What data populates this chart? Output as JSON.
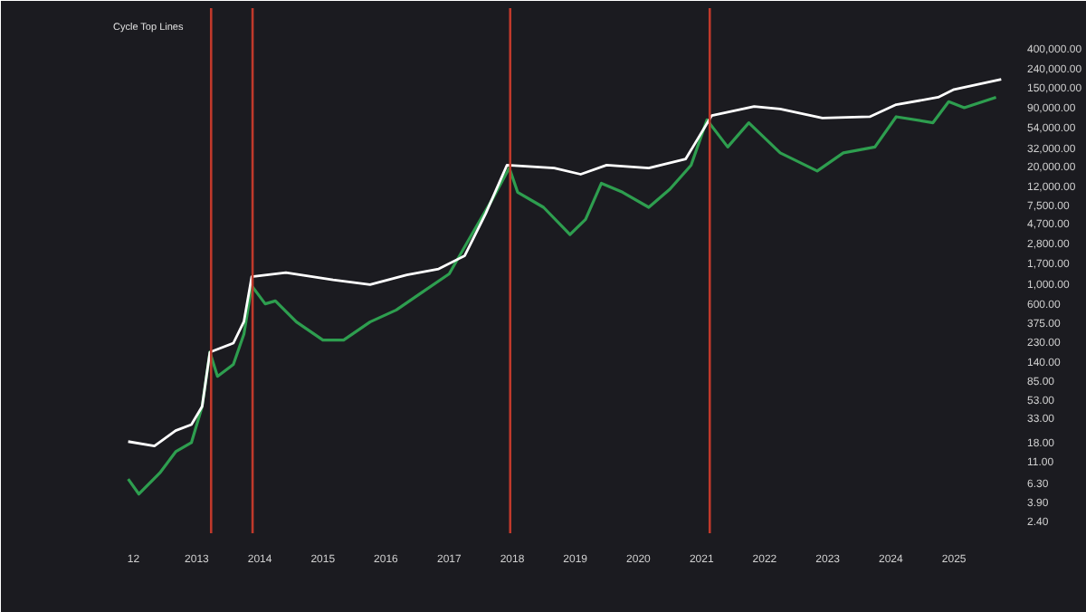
{
  "chart_data": {
    "type": "line",
    "annotations": [
      "Cycle Top Lines"
    ],
    "xlim": [
      "2011-07-25",
      "2025-11-05"
    ],
    "ylim": [
      1.75,
      1100000
    ],
    "log": "y",
    "grid": false,
    "marker": "none",
    "line_style": "solid",
    "xticks": [
      {
        "value": "2012",
        "label": "12"
      },
      "2013",
      "2014",
      "2015",
      "2016",
      "2017",
      "2018",
      "2019",
      "2020",
      "2021",
      "2022",
      "2023",
      "2024",
      "2025"
    ],
    "yticks": [
      {
        "value": 2.4,
        "label": "2.40"
      },
      {
        "value": 3.9,
        "label": "3.90"
      },
      {
        "value": 6.3,
        "label": "6.30"
      },
      {
        "value": 11,
        "label": "11.00"
      },
      {
        "value": 18,
        "label": "18.00"
      },
      {
        "value": 33,
        "label": "33.00"
      },
      {
        "value": 53,
        "label": "53.00"
      },
      {
        "value": 85,
        "label": "85.00"
      },
      {
        "value": 140,
        "label": "140.00"
      },
      {
        "value": 230,
        "label": "230.00"
      },
      {
        "value": 375,
        "label": "375.00"
      },
      {
        "value": 600,
        "label": "600.00"
      },
      {
        "value": 1000,
        "label": "1,000.00"
      },
      {
        "value": 1700,
        "label": "1,700.00"
      },
      {
        "value": 2800,
        "label": "2,800.00"
      },
      {
        "value": 4700,
        "label": "4,700.00"
      },
      {
        "value": 7500,
        "label": "7,500.00"
      },
      {
        "value": 12000,
        "label": "12,000.00"
      },
      {
        "value": 20000,
        "label": "20,000.00"
      },
      {
        "value": 32000,
        "label": "32,000.00"
      },
      {
        "value": 54000,
        "label": "54,000.00"
      },
      {
        "value": 90000,
        "label": "90,000.00"
      },
      {
        "value": 150000,
        "label": "150,000.00"
      },
      {
        "value": 240000,
        "label": "240,000.00"
      },
      {
        "value": 400000,
        "label": "400,000.00"
      }
    ],
    "ref_lines": [
      {
        "axis": "x",
        "value": "2013-03-25",
        "color": "#c0392b"
      },
      {
        "axis": "x",
        "value": "2013-11-20",
        "color": "#c0392b"
      },
      {
        "axis": "x",
        "value": "2017-12-20",
        "color": "#c0392b"
      },
      {
        "axis": "x",
        "value": "2021-02-17",
        "color": "#c0392b"
      }
    ],
    "series": [
      {
        "color": "#2e9e4f",
        "x": [
          "2011-12",
          "2012-02",
          "2012-06",
          "2012-09",
          "2012-12",
          "2013-02",
          "2013-03-18",
          "2013-05",
          "2013-08",
          "2013-10",
          "2013-11-15",
          "2014-02",
          "2014-04",
          "2014-08",
          "2015-01",
          "2015-05",
          "2015-10",
          "2016-03",
          "2016-08",
          "2017-01",
          "2017-05",
          "2017-09",
          "2017-12-15",
          "2018-02",
          "2018-07",
          "2018-12",
          "2019-03",
          "2019-06",
          "2019-10",
          "2020-03",
          "2020-07",
          "2020-11",
          "2021-02",
          "2021-06",
          "2021-10",
          "2022-04",
          "2022-11",
          "2023-04",
          "2023-10",
          "2024-02",
          "2024-09",
          "2024-12",
          "2025-03",
          "2025-09"
        ],
        "values": [
          6.95,
          4.74,
          8.09,
          13.9,
          17.5,
          43.9,
          175,
          94.6,
          128,
          277,
          946,
          597,
          643,
          377,
          238,
          238,
          377,
          511,
          809,
          1280,
          3220,
          8090,
          18900,
          10200,
          6950,
          3480,
          5100,
          12800,
          10200,
          6950,
          11000,
          20300,
          64300,
          32200,
          59700,
          27700,
          17500,
          27700,
          32200,
          69500,
          59700,
          102000,
          87500,
          114000
        ]
      },
      {
        "color": "#ffffff",
        "x": [
          "2011-12",
          "2012-05",
          "2012-09",
          "2012-12",
          "2013-02",
          "2013-03-18",
          "2013-08",
          "2013-10",
          "2013-11-15",
          "2014-06",
          "2015-03",
          "2015-10",
          "2016-05",
          "2016-11",
          "2017-04",
          "2017-08",
          "2017-12",
          "2018-09",
          "2019-02",
          "2019-07",
          "2020-03",
          "2020-10",
          "2021-03",
          "2021-11",
          "2022-04",
          "2022-12",
          "2023-09",
          "2024-02",
          "2024-10",
          "2025-01",
          "2025-10"
        ],
        "values": [
          18.0,
          16.1,
          23.8,
          27.7,
          43.9,
          175,
          220,
          382,
          1190,
          1324,
          1100,
          973,
          1250,
          1450,
          2030,
          5970,
          20300,
          18900,
          16100,
          20300,
          18900,
          23800,
          71800,
          90400,
          84700,
          67300,
          69500,
          94600,
          114000,
          139000,
          180000
        ]
      }
    ]
  }
}
